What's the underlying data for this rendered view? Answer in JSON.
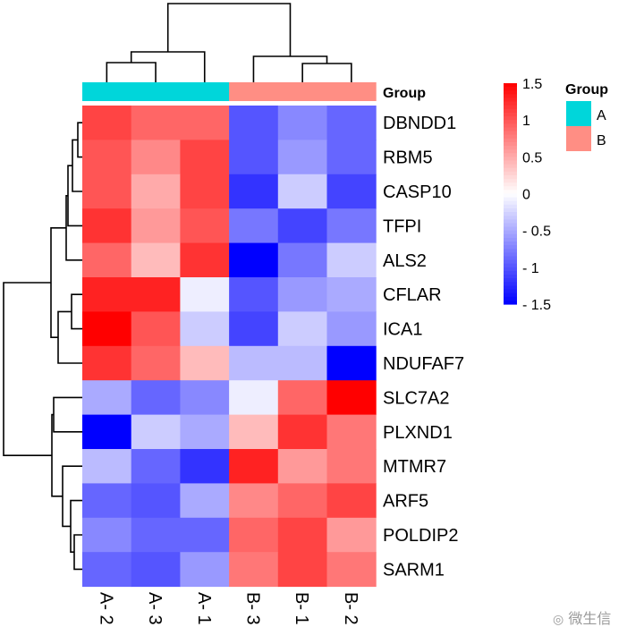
{
  "chart_data": {
    "type": "heatmap",
    "columns": [
      "A- 2",
      "A- 3",
      "A- 1",
      "B- 3",
      "B- 1",
      "B- 2"
    ],
    "column_groups": [
      "A",
      "A",
      "A",
      "B",
      "B",
      "B"
    ],
    "rows": [
      "DBNDD1",
      "RBM5",
      "CASP10",
      "TFPI",
      "ALS2",
      "CFLAR",
      "ICA1",
      "NDUFAF7",
      "SLC7A2",
      "PLXND1",
      "MTMR7",
      "ARF5",
      "POLDIP2",
      "SARM1"
    ],
    "values": [
      [
        1.1,
        0.9,
        0.9,
        -1.0,
        -0.7,
        -0.9
      ],
      [
        1.0,
        0.7,
        1.1,
        -1.0,
        -0.6,
        -0.9
      ],
      [
        1.0,
        0.5,
        1.1,
        -1.2,
        -0.3,
        -1.1
      ],
      [
        1.2,
        0.6,
        1.0,
        -0.8,
        -1.1,
        -0.8
      ],
      [
        0.9,
        0.4,
        1.2,
        -1.5,
        -0.8,
        -0.3
      ],
      [
        1.3,
        1.3,
        -0.1,
        -1.0,
        -0.6,
        -0.5
      ],
      [
        1.5,
        1.0,
        -0.3,
        -1.1,
        -0.3,
        -0.6
      ],
      [
        1.2,
        0.9,
        0.4,
        -0.4,
        -0.4,
        -1.6
      ],
      [
        -0.5,
        -0.9,
        -0.7,
        -0.1,
        0.9,
        1.5
      ],
      [
        -1.6,
        -0.3,
        -0.5,
        0.4,
        1.2,
        0.8
      ],
      [
        -0.4,
        -0.9,
        -1.2,
        1.3,
        0.6,
        0.8
      ],
      [
        -0.9,
        -1.0,
        -0.5,
        0.7,
        0.9,
        1.1
      ],
      [
        -0.7,
        -0.9,
        -0.9,
        0.9,
        1.1,
        0.6
      ],
      [
        -0.9,
        -1.0,
        -0.6,
        0.8,
        1.1,
        0.8
      ]
    ],
    "color_scale": {
      "min": -1.5,
      "max": 1.5,
      "low": "#0000FF",
      "mid": "#FFFFFF",
      "high": "#FF0000"
    },
    "colorbar_ticks": [
      "1.5",
      "1",
      "0.5",
      "0",
      "- 0.5",
      "- 1",
      "- 1.5"
    ],
    "colorbar_tick_values": [
      1.5,
      1,
      0.5,
      0,
      -0.5,
      -1,
      -1.5
    ],
    "annotation_label": "Group",
    "group_legend": {
      "title": "Group",
      "items": [
        {
          "label": "A",
          "color": "#00D6DA"
        },
        {
          "label": "B",
          "color": "#FF8E84"
        }
      ]
    },
    "row_dendrogram": true,
    "column_dendrogram": true
  },
  "watermark": "微生信"
}
